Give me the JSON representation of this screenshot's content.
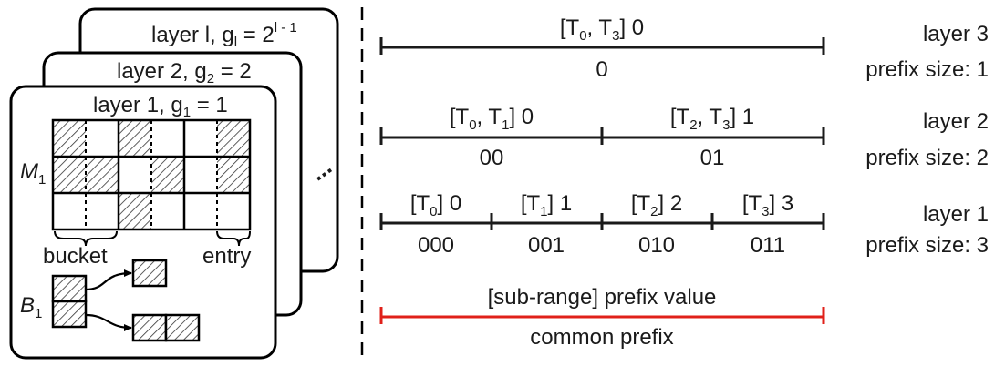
{
  "layers_stack": {
    "top_layer_title": "layer l, g",
    "top_layer_sub": "l",
    "top_layer_eq": " = 2",
    "top_layer_exp": "l - 1",
    "layer2_title": "layer 2, g",
    "layer2_sub": "2",
    "layer2_eq": " = 2",
    "layer1_title": "layer 1, g",
    "layer1_sub": "1",
    "layer1_eq": " = 1",
    "matrix_label": "M",
    "matrix_sub": "1",
    "bucket_label": "bucket",
    "entry_label": "entry",
    "b_label": "B",
    "b_sub": "1",
    "ellipsis": "..."
  },
  "ranges": {
    "layer3": {
      "segments": [
        {
          "main": "[T",
          "s1": "0",
          "mid": ", T",
          "s2": "3",
          "end": "] 0",
          "code": "0"
        }
      ],
      "layer_label": "layer 3",
      "prefix_label": "prefix size: 1"
    },
    "layer2": {
      "segments": [
        {
          "main": "[T",
          "s1": "0",
          "mid": ", T",
          "s2": "1",
          "end": "] 0",
          "code": "00"
        },
        {
          "main": "[T",
          "s1": "2",
          "mid": ",  T",
          "s2": "3",
          "end": "] 1",
          "code": "01"
        }
      ],
      "layer_label": "layer 2",
      "prefix_label": "prefix size: 2"
    },
    "layer1": {
      "segments": [
        {
          "main": "[T",
          "s1": "0",
          "end": "] 0",
          "code": "000"
        },
        {
          "main": "[T",
          "s1": "1",
          "end": "] 1",
          "code": "001"
        },
        {
          "main": "[T",
          "s1": "2",
          "end": "] 2",
          "code": "010"
        },
        {
          "main": "[T",
          "s1": "3",
          "end": "] 3",
          "code": "011"
        }
      ],
      "layer_label": "layer 1",
      "prefix_label": "prefix size: 3"
    }
  },
  "legend": {
    "top": "[sub-range] prefix value",
    "bottom": "common prefix",
    "color": "#e0201a"
  }
}
